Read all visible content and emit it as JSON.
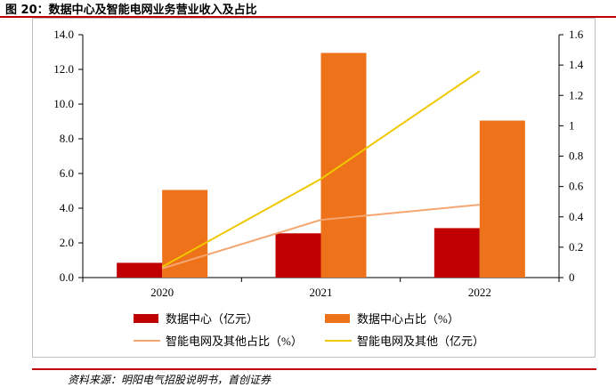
{
  "title": "图 20：数据中心及智能电网业务营业收入及占比",
  "source": "资料来源：明阳电气招股说明书，首创证券",
  "colors": {
    "dc_revenue": "#c00000",
    "dc_share": "#ee7219",
    "grid_share": "#f4a570",
    "grid_revenue": "#f0c800",
    "accent_rule": "#c00000"
  },
  "chart_data": {
    "type": "bar",
    "categories": [
      "2020",
      "2021",
      "2022"
    ],
    "left_axis": {
      "ylim": [
        0,
        14
      ],
      "ticks": [
        "0.0",
        "2.0",
        "4.0",
        "6.0",
        "8.0",
        "10.0",
        "12.0",
        "14.0"
      ]
    },
    "right_axis": {
      "ylim": [
        0,
        1.6
      ],
      "ticks": [
        "0",
        "0.2",
        "0.4",
        "0.6",
        "0.8",
        "1",
        "1.2",
        "1.4",
        "1.6"
      ]
    },
    "series": [
      {
        "name": "数据中心（亿元）",
        "kind": "bar",
        "axis": "left",
        "values": [
          0.85,
          2.55,
          2.85
        ]
      },
      {
        "name": "数据中心占比（%）",
        "kind": "bar",
        "axis": "left",
        "values": [
          5.05,
          12.95,
          9.05
        ]
      },
      {
        "name": "智能电网及其他占比（%）",
        "kind": "line",
        "axis": "right",
        "values": [
          0.06,
          0.38,
          0.48
        ]
      },
      {
        "name": "智能电网及其他（亿元）",
        "kind": "line",
        "axis": "right",
        "values": [
          0.07,
          0.65,
          1.36
        ]
      }
    ],
    "legend_position": "bottom"
  }
}
